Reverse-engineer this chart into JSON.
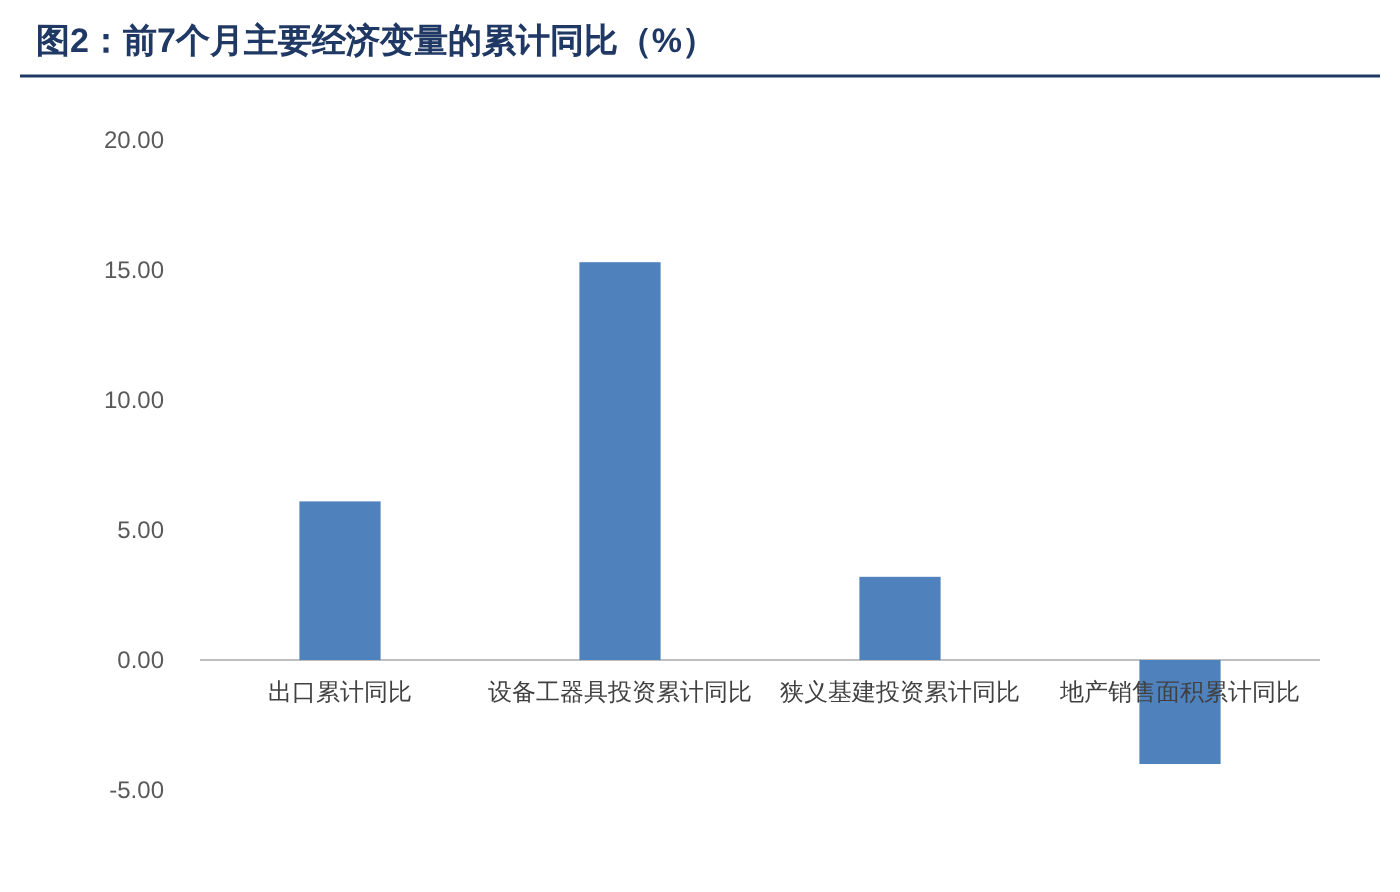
{
  "chart_data": {
    "type": "bar",
    "title": "图2：前7个月主要经济变量的累计同比（%）",
    "categories": [
      "出口累计同比",
      "设备工器具投资累计同比",
      "狭义基建投资累计同比",
      "地产销售面积累计同比"
    ],
    "values": [
      6.1,
      15.3,
      3.2,
      -4.0
    ],
    "color": "#4f81bd",
    "ylim": [
      -5,
      20
    ],
    "yticks": [
      {
        "value": -5,
        "label": "-5.00"
      },
      {
        "value": 0,
        "label": "0.00"
      },
      {
        "value": 5,
        "label": "5.00"
      },
      {
        "value": 10,
        "label": "10.00"
      },
      {
        "value": 15,
        "label": "15.00"
      },
      {
        "value": 20,
        "label": "20.00"
      }
    ],
    "grid": false
  }
}
